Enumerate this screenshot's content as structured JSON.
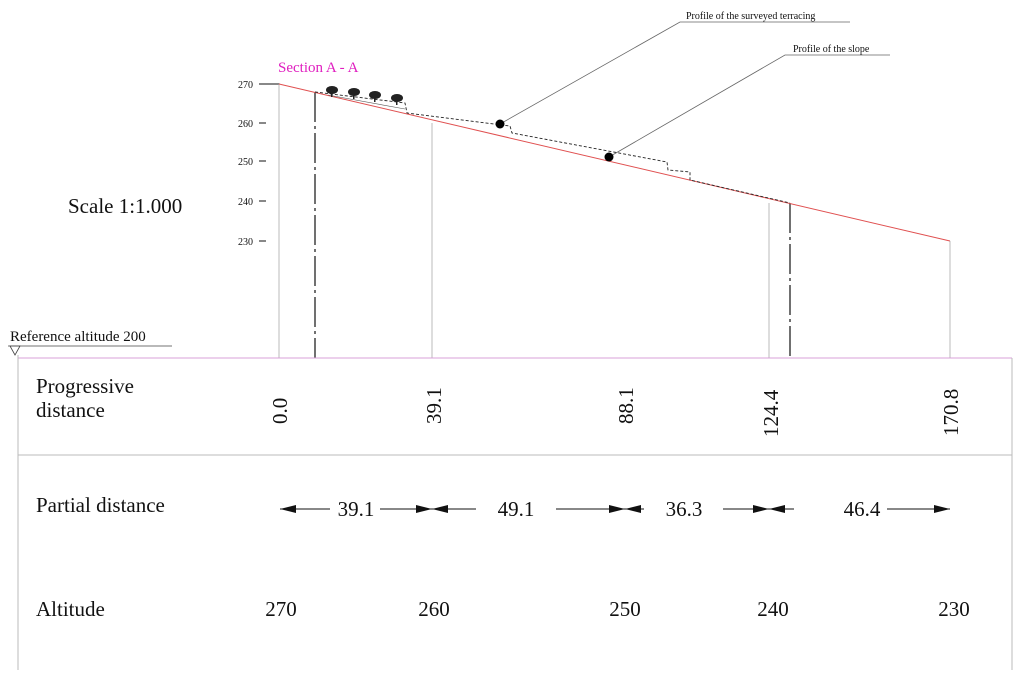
{
  "drawing": {
    "section_title": "Section A - A",
    "scale_label": "Scale 1:1.000",
    "reference_label": "Reference altitude 200",
    "callouts": {
      "terracing": "Profile of the surveyed terracing",
      "slope": "Profile of the slope"
    },
    "y_ticks": [
      "270",
      "260",
      "250",
      "240",
      "230"
    ],
    "colors": {
      "section_title": "#e01fc0",
      "slope_line": "#e05050",
      "table_line": "#bbbbbb",
      "frame_top": "#d8a0d8"
    }
  },
  "table": {
    "row_labels": {
      "progressive": "Progressive distance",
      "partial": "Partial distance",
      "altitude": "Altitude"
    },
    "progressive": [
      "0.0",
      "39.1",
      "88.1",
      "124.4",
      "170.8"
    ],
    "partial": [
      "39.1",
      "49.1",
      "36.3",
      "46.4"
    ],
    "altitude": [
      "270",
      "260",
      "250",
      "240",
      "230"
    ]
  }
}
